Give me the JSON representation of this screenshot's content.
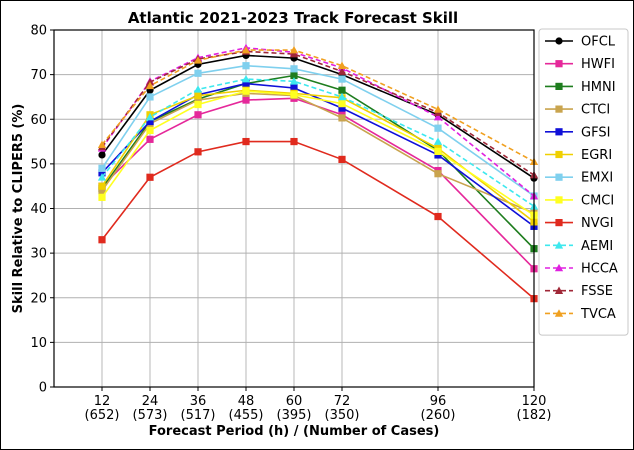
{
  "chart_data": {
    "type": "line",
    "title": "Atlantic 2021-2023 Track Forecast Skill",
    "xlabel": "Forecast Period (h) / (Number of Cases)",
    "ylabel": "Skill Relative to CLIPER5 (%)",
    "x": [
      12,
      24,
      36,
      48,
      60,
      72,
      96,
      120
    ],
    "x_tick_labels": [
      "12",
      "24",
      "36",
      "48",
      "60",
      "72",
      "96",
      "120"
    ],
    "x_tick_cases": [
      "(652)",
      "(573)",
      "(517)",
      "(455)",
      "(395)",
      "(350)",
      "(260)",
      "(182)"
    ],
    "xlim": [
      0,
      120
    ],
    "ylim": [
      0,
      80
    ],
    "y_ticks": [
      0,
      10,
      20,
      30,
      40,
      50,
      60,
      70,
      80
    ],
    "grid": true,
    "legend_position": "outside-right",
    "series": [
      {
        "name": "OFCL",
        "color": "#000000",
        "marker": "circle",
        "dash": "solid",
        "values": [
          52,
          66.5,
          72.3,
          74.3,
          73.7,
          70,
          61,
          46.8
        ]
      },
      {
        "name": "HWFI",
        "color": "#e5289a",
        "marker": "square",
        "dash": "solid",
        "values": [
          45,
          55.5,
          61,
          64.3,
          64.7,
          61,
          48.5,
          26.5
        ]
      },
      {
        "name": "HMNI",
        "color": "#1e7d1e",
        "marker": "square",
        "dash": "solid",
        "values": [
          44.5,
          59.5,
          64.5,
          68,
          69.8,
          66.5,
          53,
          31
        ]
      },
      {
        "name": "CTCI",
        "color": "#c9a44e",
        "marker": "square",
        "dash": "solid",
        "values": [
          44,
          59,
          64.3,
          65.8,
          65.3,
          60.3,
          47.8,
          39
        ]
      },
      {
        "name": "GFSI",
        "color": "#1010d8",
        "marker": "square",
        "dash": "solid",
        "values": [
          48,
          59.5,
          65.5,
          68,
          67,
          62.5,
          52,
          36
        ]
      },
      {
        "name": "EGRI",
        "color": "#f0d000",
        "marker": "square",
        "dash": "solid",
        "values": [
          45,
          61,
          65.3,
          66.5,
          65.8,
          64.8,
          53.5,
          37
        ]
      },
      {
        "name": "EMXI",
        "color": "#7fd0ee",
        "marker": "square",
        "dash": "solid",
        "values": [
          49,
          65,
          70.3,
          72,
          71.3,
          69,
          58,
          42.8
        ]
      },
      {
        "name": "CMCI",
        "color": "#ffff20",
        "marker": "square",
        "dash": "solid",
        "values": [
          42.5,
          57.5,
          63.3,
          66.3,
          65.5,
          63.5,
          52.8,
          38.5
        ]
      },
      {
        "name": "NVGI",
        "color": "#e02a1e",
        "marker": "square",
        "dash": "solid",
        "values": [
          33,
          47,
          52.7,
          55,
          55,
          51,
          38.2,
          19.8
        ]
      },
      {
        "name": "AEMI",
        "color": "#3ee8ee",
        "marker": "triangle",
        "dash": "dashed",
        "values": [
          47,
          60.5,
          66.7,
          69,
          68.5,
          65,
          55,
          40.5
        ]
      },
      {
        "name": "HCCA",
        "color": "#e020e0",
        "marker": "triangle",
        "dash": "dashed",
        "values": [
          53.5,
          68.5,
          73.8,
          76,
          75,
          71.5,
          60.5,
          42.8
        ]
      },
      {
        "name": "FSSE",
        "color": "#a02838",
        "marker": "triangle",
        "dash": "dashed",
        "values": [
          53.8,
          68.3,
          73.5,
          75.2,
          74.6,
          70.7,
          61.5,
          47.5
        ]
      },
      {
        "name": "TVCA",
        "color": "#f0a020",
        "marker": "triangle",
        "dash": "dashed",
        "values": [
          54.3,
          67.5,
          73.2,
          75.5,
          75.5,
          72,
          62.2,
          50.5
        ]
      }
    ]
  }
}
